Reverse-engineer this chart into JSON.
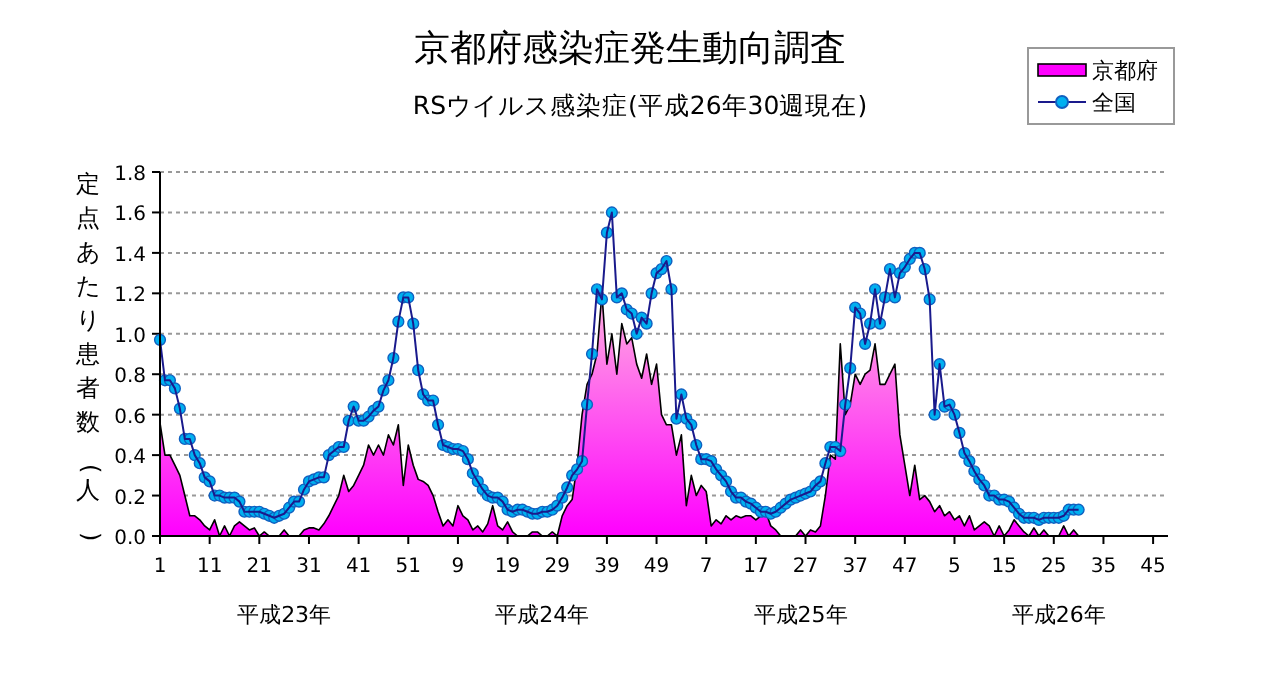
{
  "chart_data": {
    "type": "area",
    "title": "京都府感染症発生動向調査",
    "subtitle": "RSウイルス感染症(平成26年30週現在)",
    "ylabel": "定点あたり患者数(人)",
    "annotations": [
      "平成23年",
      "平成24年",
      "平成25年",
      "平成26年"
    ],
    "categories": [
      "1",
      null,
      null,
      null,
      null,
      null,
      null,
      null,
      null,
      null,
      "11",
      null,
      null,
      null,
      null,
      null,
      null,
      null,
      null,
      null,
      "21",
      null,
      null,
      null,
      null,
      null,
      null,
      null,
      null,
      null,
      "31",
      null,
      null,
      null,
      null,
      null,
      null,
      null,
      null,
      null,
      "41",
      null,
      null,
      null,
      null,
      null,
      null,
      null,
      null,
      null,
      "51",
      null,
      null,
      null,
      null,
      null,
      null,
      null,
      null,
      null,
      "9",
      null,
      null,
      null,
      null,
      null,
      null,
      null,
      null,
      null,
      "19",
      null,
      null,
      null,
      null,
      null,
      null,
      null,
      null,
      null,
      "29",
      null,
      null,
      null,
      null,
      null,
      null,
      null,
      null,
      null,
      "39",
      null,
      null,
      null,
      null,
      null,
      null,
      null,
      null,
      null,
      "49",
      null,
      null,
      null,
      null,
      null,
      null,
      null,
      null,
      null,
      "7",
      null,
      null,
      null,
      null,
      null,
      null,
      null,
      null,
      null,
      "17",
      null,
      null,
      null,
      null,
      null,
      null,
      null,
      null,
      null,
      "27",
      null,
      null,
      null,
      null,
      null,
      null,
      null,
      null,
      null,
      "37",
      null,
      null,
      null,
      null,
      null,
      null,
      null,
      null,
      null,
      "47",
      null,
      null,
      null,
      null,
      null,
      null,
      null,
      null,
      null,
      "5",
      null,
      null,
      null,
      null,
      null,
      null,
      null,
      null,
      null,
      "15",
      null,
      null,
      null,
      null,
      null,
      null,
      null,
      null,
      null,
      "25",
      null,
      null,
      null,
      null,
      null,
      null,
      null,
      null,
      null,
      "35",
      null,
      null,
      null,
      null,
      null,
      null,
      null,
      null,
      null,
      "45",
      null,
      null,
      null
    ],
    "ylim": [
      0,
      1.8
    ],
    "yticks": [
      {
        "value": 0,
        "label": "0.0"
      },
      {
        "value": 0.2,
        "label": "0.2"
      },
      {
        "value": 0.4,
        "label": "0.4"
      },
      {
        "value": 0.6,
        "label": "0.6"
      },
      {
        "value": 0.8,
        "label": "0.8"
      },
      {
        "value": 1,
        "label": "1.0"
      },
      {
        "value": 1.2,
        "label": "1.2"
      },
      {
        "value": 1.4,
        "label": "1.4"
      },
      {
        "value": 1.6,
        "label": "1.6"
      },
      {
        "value": 1.8,
        "label": "1.8"
      }
    ],
    "grid": "y",
    "legend": "top right",
    "series": [
      {
        "name": "京都府",
        "color": "#ff00ff",
        "values": [
          0.56,
          0.4,
          0.4,
          0.35,
          0.3,
          0.2,
          0.1,
          0.1,
          0.08,
          0.05,
          0.03,
          0.08,
          0,
          0.05,
          0,
          0.05,
          0.07,
          0.05,
          0.03,
          0.04,
          0,
          0.02,
          0,
          0,
          0,
          0.03,
          0,
          0,
          0,
          0.03,
          0.04,
          0.04,
          0.03,
          0.06,
          0.1,
          0.15,
          0.2,
          0.3,
          0.22,
          0.25,
          0.3,
          0.35,
          0.45,
          0.4,
          0.45,
          0.4,
          0.5,
          0.45,
          0.55,
          0.25,
          0.45,
          0.35,
          0.28,
          0.27,
          0.25,
          0.2,
          0.12,
          0.05,
          0.08,
          0.05,
          0.15,
          0.1,
          0.08,
          0.03,
          0.05,
          0.02,
          0.06,
          0.15,
          0.05,
          0.03,
          0.07,
          0.02,
          0,
          0,
          0,
          0.02,
          0.02,
          0,
          0,
          0.02,
          0,
          0.1,
          0.15,
          0.18,
          0.35,
          0.6,
          0.75,
          0.8,
          0.9,
          1.2,
          0.85,
          1,
          0.8,
          1.05,
          0.95,
          0.98,
          0.85,
          0.78,
          0.9,
          0.75,
          0.85,
          0.6,
          0.55,
          0.55,
          0.4,
          0.5,
          0.15,
          0.3,
          0.2,
          0.25,
          0.22,
          0.05,
          0.08,
          0.06,
          0.1,
          0.08,
          0.1,
          0.09,
          0.1,
          0.1,
          0.08,
          0.1,
          0.12,
          0.05,
          0.03,
          0,
          0,
          0,
          0,
          0.03,
          0,
          0.03,
          0.02,
          0.05,
          0.2,
          0.4,
          0.38,
          0.95,
          0.6,
          0.65,
          0.8,
          0.75,
          0.8,
          0.82,
          0.95,
          0.75,
          0.75,
          0.8,
          0.85,
          0.5,
          0.35,
          0.2,
          0.35,
          0.18,
          0.2,
          0.17,
          0.12,
          0.15,
          0.1,
          0.12,
          0.08,
          0.1,
          0.05,
          0.1,
          0.03,
          0.05,
          0.07,
          0.05,
          0,
          0.05,
          0,
          0.03,
          0.08,
          0.05,
          0.02,
          0,
          0.04,
          0,
          0.03,
          0,
          0,
          0,
          0.05,
          0,
          0.03,
          0,
          null,
          null,
          null,
          null,
          null,
          null,
          null,
          null,
          null,
          null,
          null,
          null,
          null,
          null,
          null,
          null,
          null,
          null
        ]
      },
      {
        "name": "全国",
        "type": "line",
        "color": "#00b0f0",
        "marker": "circle",
        "values": [
          0.97,
          0.77,
          0.77,
          0.73,
          0.63,
          0.48,
          0.48,
          0.4,
          0.36,
          0.29,
          0.27,
          0.2,
          0.2,
          0.19,
          0.19,
          0.19,
          0.17,
          0.12,
          0.12,
          0.12,
          0.12,
          0.11,
          0.1,
          0.09,
          0.1,
          0.11,
          0.14,
          0.17,
          0.17,
          0.23,
          0.27,
          0.28,
          0.29,
          0.29,
          0.4,
          0.42,
          0.44,
          0.44,
          0.57,
          0.64,
          0.57,
          0.57,
          0.59,
          0.62,
          0.64,
          0.72,
          0.77,
          0.88,
          1.06,
          1.18,
          1.18,
          1.05,
          0.82,
          0.7,
          0.67,
          0.67,
          0.55,
          0.45,
          0.44,
          0.43,
          0.43,
          0.42,
          0.38,
          0.31,
          0.27,
          0.23,
          0.2,
          0.19,
          0.19,
          0.17,
          0.13,
          0.12,
          0.13,
          0.13,
          0.12,
          0.11,
          0.11,
          0.12,
          0.12,
          0.13,
          0.15,
          0.19,
          0.24,
          0.3,
          0.33,
          0.37,
          0.65,
          0.9,
          1.22,
          1.17,
          1.5,
          1.6,
          1.18,
          1.2,
          1.12,
          1.1,
          1,
          1.08,
          1.05,
          1.2,
          1.3,
          1.32,
          1.36,
          1.22,
          0.58,
          0.7,
          0.58,
          0.55,
          0.45,
          0.38,
          0.38,
          0.37,
          0.33,
          0.3,
          0.27,
          0.22,
          0.19,
          0.19,
          0.17,
          0.16,
          0.14,
          0.12,
          0.12,
          0.11,
          0.12,
          0.14,
          0.16,
          0.18,
          0.19,
          0.2,
          0.21,
          0.22,
          0.25,
          0.27,
          0.36,
          0.44,
          0.44,
          0.42,
          0.65,
          0.83,
          1.13,
          1.1,
          0.95,
          1.05,
          1.22,
          1.05,
          1.18,
          1.32,
          1.18,
          1.3,
          1.33,
          1.37,
          1.4,
          1.4,
          1.32,
          1.17,
          0.6,
          0.85,
          0.64,
          0.65,
          0.6,
          0.51,
          0.41,
          0.37,
          0.32,
          0.28,
          0.25,
          0.2,
          0.2,
          0.18,
          0.18,
          0.17,
          0.14,
          0.11,
          0.09,
          0.09,
          0.09,
          0.08,
          0.09,
          0.09,
          0.09,
          0.09,
          0.1,
          0.13,
          0.13,
          0.13,
          null,
          null,
          null,
          null,
          null,
          null,
          null,
          null,
          null,
          null,
          null,
          null,
          null,
          null,
          null,
          null,
          null,
          null
        ]
      }
    ]
  }
}
